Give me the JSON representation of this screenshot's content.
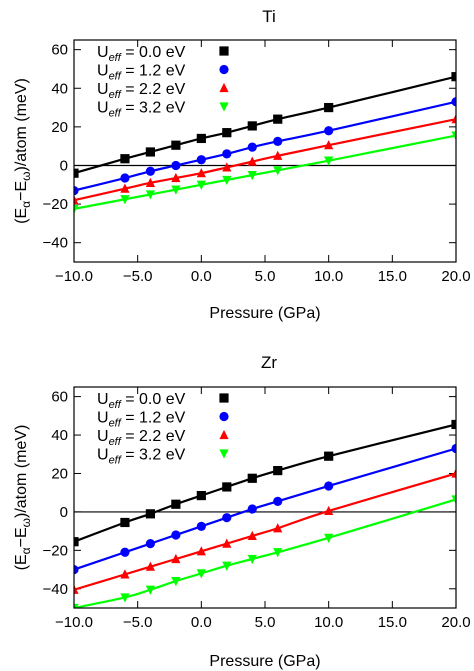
{
  "chart_data": [
    {
      "type": "line",
      "title": "Ti",
      "xlabel": "Pressure (GPa)",
      "ylabel": {
        "prefix": "(E",
        "sub1": "α",
        "mid": "−E",
        "sub2": "ω",
        "suffix": ")/atom (meV)"
      },
      "xlim": [
        -10,
        20
      ],
      "ylim": [
        -50,
        65
      ],
      "xticks": [
        -10,
        -5,
        0,
        5,
        10,
        15,
        20
      ],
      "xtick_labels": [
        "−10.0",
        "−5.0",
        "0.0",
        "5.0",
        "10.0",
        "15.0",
        "20.0"
      ],
      "yticks": [
        -40,
        -20,
        0,
        20,
        40,
        60
      ],
      "ytick_labels": [
        "−40",
        "−20",
        "0",
        "20",
        "40",
        "60"
      ],
      "zero_line": true,
      "grid": false,
      "legend_position": "top-left",
      "series": [
        {
          "name": {
            "main": "U",
            "sub": "eff",
            "rest": " = 0.0 eV"
          },
          "color": "#000000",
          "marker": "square",
          "x": [
            -10,
            -6,
            -4,
            -2,
            0,
            2,
            4,
            6,
            10,
            20
          ],
          "y": [
            -4,
            3.5,
            7,
            10.5,
            14,
            17,
            20.5,
            24,
            30,
            46
          ]
        },
        {
          "name": {
            "main": "U",
            "sub": "eff",
            "rest": " = 1.2 eV"
          },
          "color": "#0000ff",
          "marker": "circle",
          "x": [
            -10,
            -6,
            -4,
            -2,
            0,
            2,
            4,
            6,
            10,
            20
          ],
          "y": [
            -13,
            -6.5,
            -3,
            0,
            3,
            6,
            9.5,
            12.5,
            18,
            33
          ]
        },
        {
          "name": {
            "main": "U",
            "sub": "eff",
            "rest": " = 2.2 eV"
          },
          "color": "#ff0000",
          "marker": "triangle-up",
          "x": [
            -10,
            -6,
            -4,
            -2,
            0,
            2,
            4,
            6,
            10,
            20
          ],
          "y": [
            -18,
            -12,
            -9,
            -6.5,
            -4,
            -1,
            2,
            5,
            10.5,
            24
          ]
        },
        {
          "name": {
            "main": "U",
            "sub": "eff",
            "rest": " = 3.2 eV"
          },
          "color": "#00ff00",
          "marker": "triangle-down",
          "x": [
            -10,
            -6,
            -4,
            -2,
            0,
            2,
            4,
            6,
            10,
            20
          ],
          "y": [
            -22.5,
            -17.5,
            -15,
            -12.5,
            -10,
            -7.5,
            -5,
            -2.5,
            2.5,
            15.5
          ]
        }
      ]
    },
    {
      "type": "line",
      "title": "Zr",
      "xlabel": "Pressure (GPa)",
      "ylabel": {
        "prefix": "(E",
        "sub1": "α",
        "mid": "−E",
        "sub2": "ω",
        "suffix": ")/atom (meV)"
      },
      "xlim": [
        -10,
        20
      ],
      "ylim": [
        -50,
        65
      ],
      "xticks": [
        -10,
        -5,
        0,
        5,
        10,
        15,
        20
      ],
      "xtick_labels": [
        "−10.0",
        "−5.0",
        "0.0",
        "5.0",
        "10.0",
        "15.0",
        "20.0"
      ],
      "yticks": [
        -40,
        -20,
        0,
        20,
        40,
        60
      ],
      "ytick_labels": [
        "−40",
        "−20",
        "0",
        "20",
        "40",
        "60"
      ],
      "zero_line": true,
      "grid": false,
      "legend_position": "top-left",
      "series": [
        {
          "name": {
            "main": "U",
            "sub": "eff",
            "rest": " = 0.0 eV"
          },
          "color": "#000000",
          "marker": "square",
          "x": [
            -10,
            -6,
            -4,
            -2,
            0,
            2,
            4,
            6,
            10,
            20
          ],
          "y": [
            -15.5,
            -5.5,
            -1,
            4,
            8.5,
            13,
            17.5,
            21.5,
            29,
            45.5
          ]
        },
        {
          "name": {
            "main": "U",
            "sub": "eff",
            "rest": " = 1.2 eV"
          },
          "color": "#0000ff",
          "marker": "circle",
          "x": [
            -10,
            -6,
            -4,
            -2,
            0,
            2,
            4,
            6,
            10,
            20
          ],
          "y": [
            -30,
            -21,
            -16.5,
            -12,
            -7.5,
            -3,
            1.5,
            5.5,
            13.5,
            33
          ]
        },
        {
          "name": {
            "main": "U",
            "sub": "eff",
            "rest": " = 2.2 eV"
          },
          "color": "#ff0000",
          "marker": "triangle-up",
          "x": [
            -10,
            -6,
            -4,
            -2,
            0,
            2,
            4,
            6,
            10,
            20
          ],
          "y": [
            -40.5,
            -32.5,
            -28.5,
            -24.5,
            -20.5,
            -16.5,
            -12.5,
            -8.5,
            0.5,
            20
          ]
        },
        {
          "name": {
            "main": "U",
            "sub": "eff",
            "rest": " = 3.2 eV"
          },
          "color": "#00ff00",
          "marker": "triangle-down",
          "x": [
            -10,
            -6,
            -4,
            -2,
            0,
            2,
            4,
            6,
            10,
            20
          ],
          "y": [
            -50,
            -44.5,
            -40.5,
            -36,
            -32,
            -28,
            -24.5,
            -21,
            -13.5,
            6.5
          ]
        }
      ]
    }
  ]
}
